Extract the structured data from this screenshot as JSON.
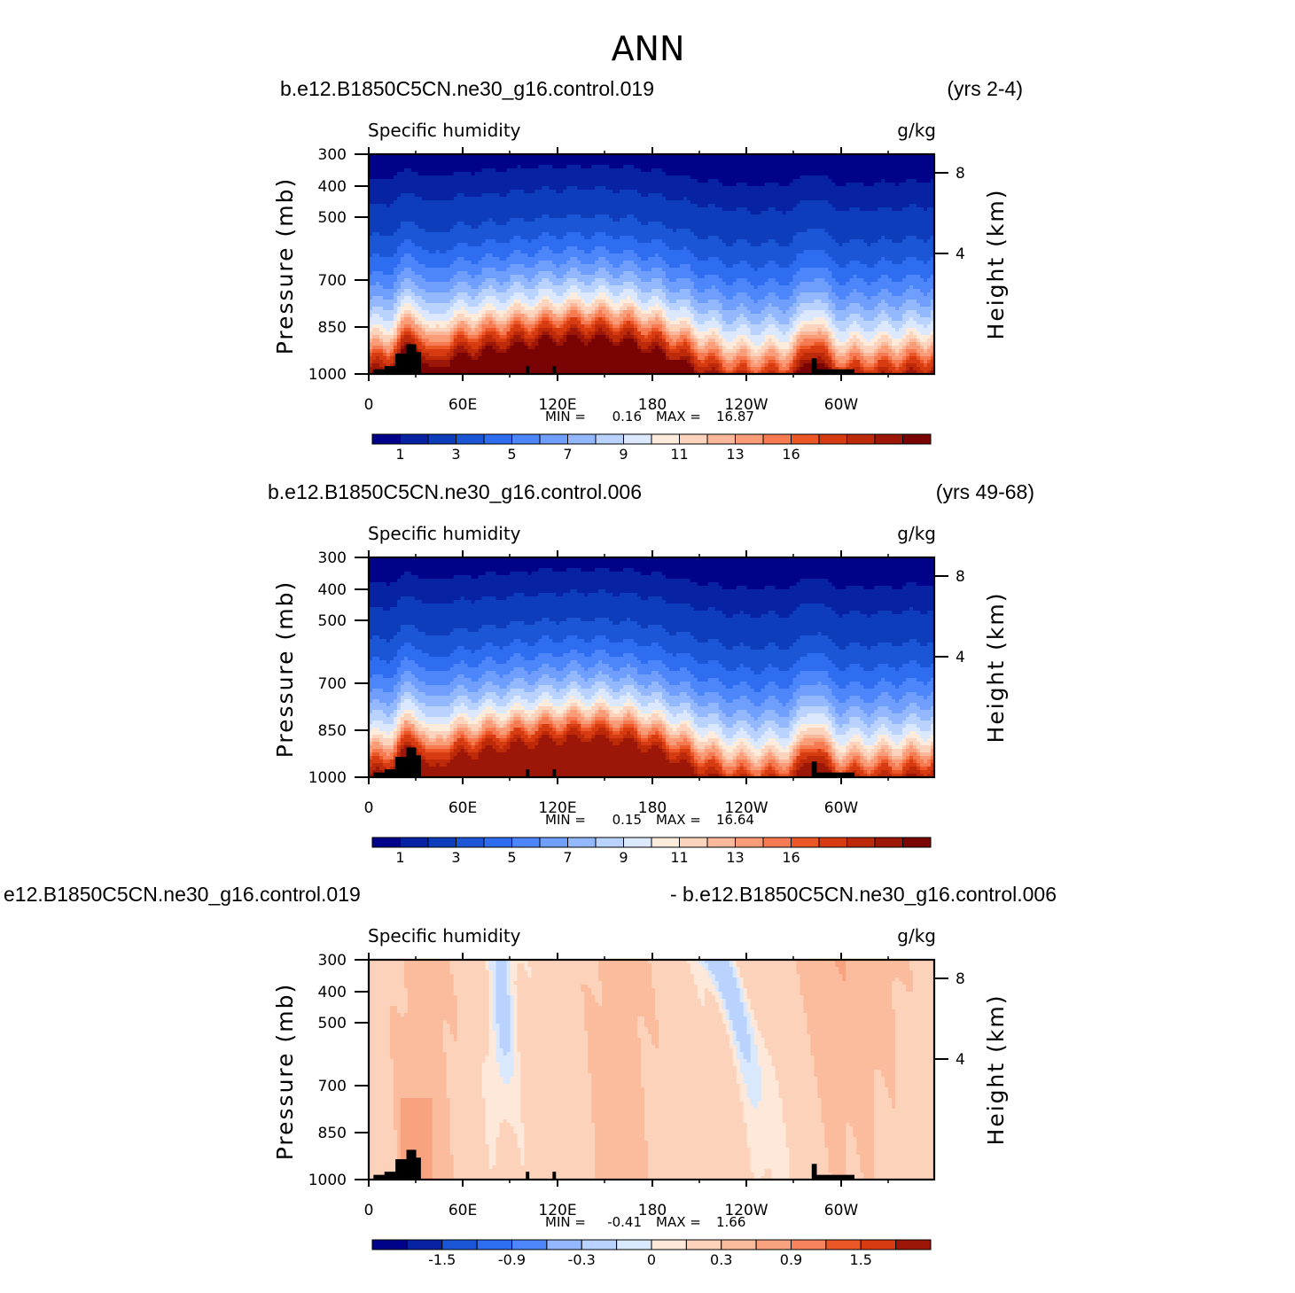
{
  "figure": {
    "title": "ANN"
  },
  "palettes": {
    "abs": [
      "#00038a",
      "#0722a3",
      "#0e3dbc",
      "#1b56d7",
      "#2e6df0",
      "#4d86fb",
      "#6f9efd",
      "#94b8fd",
      "#b9d2fe",
      "#dce8fe",
      "#fdebdc",
      "#fcd3bc",
      "#fcb89a",
      "#fb9c79",
      "#f77b52",
      "#ec5727",
      "#d73b12",
      "#bd2a0a",
      "#9c1707",
      "#7a0404"
    ],
    "diff": [
      "#00038a",
      "#0722a3",
      "#1b56d7",
      "#2e6df0",
      "#4d86fb",
      "#94b8fd",
      "#b9d2fe",
      "#d9e8fd",
      "#fde8d9",
      "#fcd2bb",
      "#fbbc9e",
      "#f9a27f",
      "#f5845c",
      "#ec5727",
      "#d73b12",
      "#9c1707"
    ]
  },
  "chart_data": [
    {
      "type": "heatmap",
      "subtitle_left": "b.e12.B1850C5CN.ne30_g16.control.019",
      "subtitle_right": "(yrs 2-4)",
      "variable": "Specific humidity",
      "units": "g/kg",
      "ylabel": "Pressure (mb)",
      "ylabel_right": "Height (km)",
      "x_ticks": [
        "0",
        "60E",
        "120E",
        "180",
        "120W",
        "60W"
      ],
      "y_ticks": [
        "300",
        "400",
        "500",
        "700",
        "850",
        "1000"
      ],
      "y_ticks_right": [
        "8",
        "4"
      ],
      "xlim": [
        0,
        360
      ],
      "ylim": [
        1000,
        300
      ],
      "min_text": "MIN =",
      "min_value": "0.16",
      "max_text": "MAX =",
      "max_value": "16.87",
      "colorbar_labels": [
        "1",
        "3",
        "5",
        "7",
        "9",
        "11",
        "13",
        "16"
      ],
      "palette": "abs",
      "field_kind": "abs",
      "surface_max_level": 19
    },
    {
      "type": "heatmap",
      "subtitle_left": "b.e12.B1850C5CN.ne30_g16.control.006",
      "subtitle_right": "(yrs 49-68)",
      "variable": "Specific humidity",
      "units": "g/kg",
      "ylabel": "Pressure (mb)",
      "ylabel_right": "Height (km)",
      "x_ticks": [
        "0",
        "60E",
        "120E",
        "180",
        "120W",
        "60W"
      ],
      "y_ticks": [
        "300",
        "400",
        "500",
        "700",
        "850",
        "1000"
      ],
      "y_ticks_right": [
        "8",
        "4"
      ],
      "xlim": [
        0,
        360
      ],
      "ylim": [
        1000,
        300
      ],
      "min_text": "MIN =",
      "min_value": "0.15",
      "max_text": "MAX =",
      "max_value": "16.64",
      "colorbar_labels": [
        "1",
        "3",
        "5",
        "7",
        "9",
        "11",
        "13",
        "16"
      ],
      "palette": "abs",
      "field_kind": "abs",
      "surface_max_level": 18
    },
    {
      "type": "heatmap",
      "subtitle_left": "e12.B1850C5CN.ne30_g16.control.019",
      "subtitle_right": "- b.e12.B1850C5CN.ne30_g16.control.006",
      "variable": "Specific humidity",
      "units": "g/kg",
      "ylabel": "Pressure (mb)",
      "ylabel_right": "Height (km)",
      "x_ticks": [
        "0",
        "60E",
        "120E",
        "180",
        "120W",
        "60W"
      ],
      "y_ticks": [
        "300",
        "400",
        "500",
        "700",
        "850",
        "1000"
      ],
      "y_ticks_right": [
        "8",
        "4"
      ],
      "xlim": [
        0,
        360
      ],
      "ylim": [
        1000,
        300
      ],
      "min_text": "MIN =",
      "min_value": "-0.41",
      "max_text": "MAX =",
      "max_value": "1.66",
      "colorbar_labels": [
        "-1.5",
        "-0.9",
        "-0.3",
        "0",
        "0.3",
        "0.9",
        "1.5"
      ],
      "palette": "diff",
      "field_kind": "diff"
    }
  ]
}
